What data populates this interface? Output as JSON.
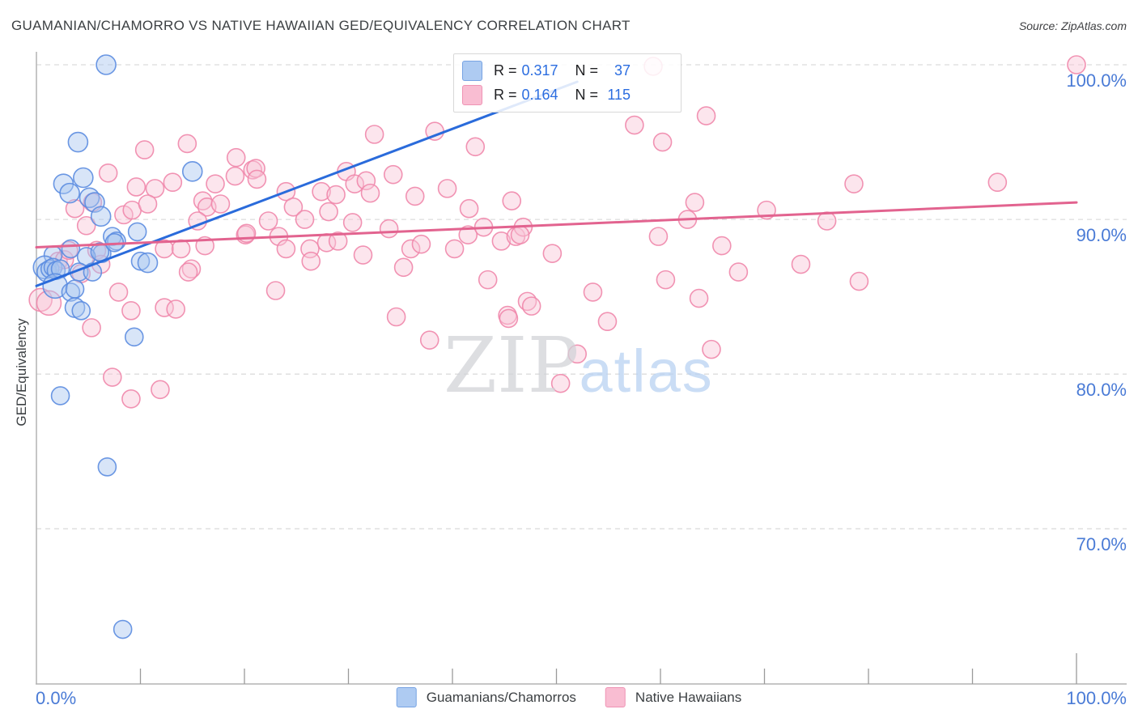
{
  "title": "GUAMANIAN/CHAMORRO VS NATIVE HAWAIIAN GED/EQUIVALENCY CORRELATION CHART",
  "source": "Source: ZipAtlas.com",
  "watermark": {
    "zip": "ZIP",
    "atlas": "atlas"
  },
  "axes": {
    "y_title": "GED/Equivalency",
    "y_tick_labels": [
      "100.0%",
      "90.0%",
      "80.0%",
      "70.0%"
    ],
    "y_tick_values": [
      100,
      90,
      80,
      70
    ],
    "x_left_label": "0.0%",
    "x_right_label": "100.0%",
    "label_color": "#4a7bd6"
  },
  "legend_box": {
    "rows": [
      {
        "r_label": "R =",
        "r_value": "0.317",
        "n_label": "N =",
        "n_value": "37"
      },
      {
        "r_label": "R =",
        "r_value": "0.164",
        "n_label": "N =",
        "n_value": "115"
      }
    ]
  },
  "bottom_legend": [
    {
      "label": "Guamanians/Chamorros"
    },
    {
      "label": "Native Hawaiians"
    }
  ],
  "chart_data": {
    "type": "scatter",
    "title": "GUAMANIAN/CHAMORRO VS NATIVE HAWAIIAN GED/EQUIVALENCY CORRELATION CHART",
    "xlabel": "",
    "ylabel": "GED/Equivalency",
    "xlim": [
      0,
      100
    ],
    "ylim": [
      60,
      101
    ],
    "x_axis_tick_step": 10,
    "grid": "horizontal-dashed",
    "legend_position": "top-center and bottom-center",
    "series": [
      {
        "name": "Guamanians/Chamorros",
        "R": 0.317,
        "N": 37,
        "stroke": "#5b8ce0",
        "fill": "#a8c6f0",
        "points": [
          [
            6.7,
            100.0,
            12
          ],
          [
            4.0,
            95.0,
            12
          ],
          [
            2.6,
            92.3,
            12
          ],
          [
            3.2,
            91.7,
            12
          ],
          [
            4.5,
            92.7,
            12
          ],
          [
            5.1,
            91.4,
            12
          ],
          [
            5.6,
            91.1,
            12
          ],
          [
            6.2,
            90.2,
            12
          ],
          [
            15.0,
            93.1,
            12
          ],
          [
            6.3,
            87.8,
            11
          ],
          [
            7.3,
            88.9,
            11
          ],
          [
            7.7,
            88.6,
            11
          ],
          [
            9.7,
            89.2,
            11
          ],
          [
            10.0,
            87.3,
            11
          ],
          [
            10.7,
            87.2,
            12
          ],
          [
            1.6,
            87.7,
            11
          ],
          [
            3.3,
            88.1,
            11
          ],
          [
            0.8,
            86.9,
            14
          ],
          [
            1.0,
            86.6,
            12
          ],
          [
            1.3,
            86.8,
            11
          ],
          [
            1.6,
            86.9,
            11
          ],
          [
            1.9,
            86.7,
            11
          ],
          [
            2.3,
            86.8,
            11
          ],
          [
            4.8,
            87.6,
            11
          ],
          [
            6.1,
            87.9,
            11
          ],
          [
            4.1,
            86.6,
            11
          ],
          [
            5.4,
            86.6,
            11
          ],
          [
            1.8,
            85.7,
            15
          ],
          [
            3.3,
            85.3,
            11
          ],
          [
            3.7,
            85.5,
            11
          ],
          [
            3.7,
            84.3,
            12
          ],
          [
            4.3,
            84.1,
            11
          ],
          [
            9.4,
            82.4,
            11
          ],
          [
            2.3,
            78.6,
            11
          ],
          [
            6.8,
            74.0,
            11
          ],
          [
            8.3,
            63.5,
            11
          ],
          [
            7.5,
            88.5,
            11
          ]
        ]
      },
      {
        "name": "Native Hawaiians",
        "R": 0.164,
        "N": 115,
        "stroke": "#ef87ab",
        "fill": "#f8c6d8",
        "points": [
          [
            10.4,
            94.5
          ],
          [
            14.5,
            94.9
          ],
          [
            19.2,
            94.0
          ],
          [
            6.9,
            93.0
          ],
          [
            9.6,
            92.1
          ],
          [
            11.4,
            92.0
          ],
          [
            13.1,
            92.4
          ],
          [
            17.2,
            92.3
          ],
          [
            19.1,
            92.8
          ],
          [
            20.8,
            93.2
          ],
          [
            16.0,
            91.2
          ],
          [
            16.4,
            90.8
          ],
          [
            17.7,
            91.0
          ],
          [
            3.7,
            90.7
          ],
          [
            5.4,
            91.1
          ],
          [
            4.8,
            89.6
          ],
          [
            8.4,
            90.3
          ],
          [
            9.2,
            90.6
          ],
          [
            10.7,
            91.0
          ],
          [
            15.5,
            89.9
          ],
          [
            20.1,
            89.0
          ],
          [
            12.3,
            88.1
          ],
          [
            13.9,
            88.1
          ],
          [
            16.2,
            88.3
          ],
          [
            14.9,
            86.8
          ],
          [
            2.1,
            87.3
          ],
          [
            2.7,
            87.4
          ],
          [
            3.1,
            88.0
          ],
          [
            5.8,
            88.0
          ],
          [
            6.2,
            87.1
          ],
          [
            4.3,
            86.5
          ],
          [
            63.7,
            84.9
          ],
          [
            14.6,
            86.6
          ],
          [
            7.9,
            85.3
          ],
          [
            9.1,
            84.1
          ],
          [
            12.3,
            84.3
          ],
          [
            13.4,
            84.2
          ],
          [
            0.4,
            84.8,
            14
          ],
          [
            1.2,
            84.6,
            15
          ],
          [
            5.3,
            83.0
          ],
          [
            54.9,
            83.4
          ],
          [
            7.3,
            79.8
          ],
          [
            9.1,
            78.4
          ],
          [
            11.9,
            79.0
          ],
          [
            32.5,
            95.5
          ],
          [
            38.3,
            95.7
          ],
          [
            42.2,
            94.7
          ],
          [
            21.1,
            93.3
          ],
          [
            78.6,
            92.3
          ],
          [
            21.2,
            92.6
          ],
          [
            24.0,
            91.8
          ],
          [
            29.8,
            93.1
          ],
          [
            30.6,
            92.3
          ],
          [
            31.7,
            92.5
          ],
          [
            32.1,
            91.7
          ],
          [
            27.4,
            91.8
          ],
          [
            28.8,
            91.6
          ],
          [
            34.3,
            92.9
          ],
          [
            24.7,
            90.8
          ],
          [
            79.1,
            86.0
          ],
          [
            25.8,
            90.0
          ],
          [
            28.1,
            90.5
          ],
          [
            36.4,
            91.5
          ],
          [
            92.4,
            92.4
          ],
          [
            39.5,
            92.0
          ],
          [
            41.6,
            90.7
          ],
          [
            45.7,
            91.2
          ],
          [
            22.3,
            89.9
          ],
          [
            20.2,
            89.1
          ],
          [
            23.3,
            88.9
          ],
          [
            24.0,
            88.1
          ],
          [
            30.4,
            89.8
          ],
          [
            33.9,
            89.4
          ],
          [
            26.3,
            88.1
          ],
          [
            100.0,
            100.0
          ],
          [
            27.9,
            88.5
          ],
          [
            29.0,
            88.6
          ],
          [
            26.4,
            87.3
          ],
          [
            31.4,
            87.7
          ],
          [
            36.0,
            88.1
          ],
          [
            37.0,
            88.4
          ],
          [
            40.2,
            88.1
          ],
          [
            41.5,
            89.0
          ],
          [
            43.0,
            89.5
          ],
          [
            64.9,
            81.6
          ],
          [
            44.7,
            88.6
          ],
          [
            46.1,
            88.9
          ],
          [
            35.3,
            86.9
          ],
          [
            43.4,
            86.1
          ],
          [
            23.0,
            85.4
          ],
          [
            34.6,
            83.7
          ],
          [
            45.3,
            83.8
          ],
          [
            47.2,
            84.7
          ],
          [
            37.8,
            82.2
          ],
          [
            45.4,
            83.6
          ],
          [
            47.6,
            84.4
          ],
          [
            52.0,
            81.3
          ],
          [
            50.4,
            79.4
          ],
          [
            59.3,
            99.9
          ],
          [
            64.4,
            96.7
          ],
          [
            57.5,
            96.1
          ],
          [
            60.2,
            95.0
          ],
          [
            63.3,
            91.1
          ],
          [
            62.6,
            90.0
          ],
          [
            70.2,
            90.6
          ],
          [
            76.0,
            89.9
          ],
          [
            46.8,
            89.5
          ],
          [
            46.5,
            89.0
          ],
          [
            49.6,
            87.8
          ],
          [
            59.8,
            88.9
          ],
          [
            65.9,
            88.3
          ],
          [
            67.5,
            86.6
          ],
          [
            73.5,
            87.1
          ],
          [
            60.5,
            86.1
          ],
          [
            53.5,
            85.3
          ]
        ]
      }
    ],
    "trendlines": [
      {
        "series_index": 0,
        "color": "#2a6bdb",
        "x1": 0,
        "y1": 85.7,
        "x2": 52,
        "y2": 98.9
      },
      {
        "series_index": 1,
        "color": "#e2638f",
        "x1": 0,
        "y1": 88.2,
        "x2": 100,
        "y2": 91.1
      }
    ],
    "colors": {
      "grid": "#dcdcdc",
      "axis": "#b3b3b3",
      "tick": "#9a9a9a",
      "axis_label_blue": "#4a7bd6",
      "legend_value_blue": "#2b6de0",
      "swatch_blue_fill": "#aecbf2",
      "swatch_blue_stroke": "#77a3e3",
      "swatch_pink_fill": "#f9bdd2",
      "swatch_pink_stroke": "#ef93b4"
    }
  }
}
